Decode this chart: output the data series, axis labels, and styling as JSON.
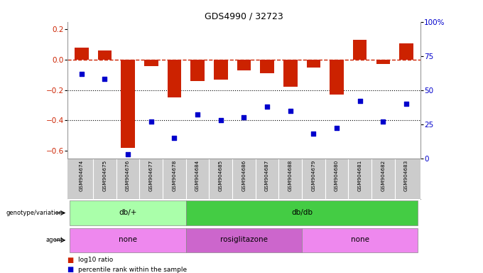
{
  "title": "GDS4990 / 32723",
  "samples": [
    "GSM904674",
    "GSM904675",
    "GSM904676",
    "GSM904677",
    "GSM904678",
    "GSM904684",
    "GSM904685",
    "GSM904686",
    "GSM904687",
    "GSM904688",
    "GSM904679",
    "GSM904680",
    "GSM904681",
    "GSM904682",
    "GSM904683"
  ],
  "log10_ratio": [
    0.08,
    0.06,
    -0.58,
    -0.04,
    -0.25,
    -0.14,
    -0.13,
    -0.07,
    -0.09,
    -0.18,
    -0.05,
    -0.23,
    0.13,
    -0.03,
    0.11
  ],
  "percentile_rank": [
    62,
    58,
    3,
    27,
    15,
    32,
    28,
    30,
    38,
    35,
    18,
    22,
    42,
    27,
    40
  ],
  "ylim_left": [
    -0.65,
    0.25
  ],
  "ylim_right": [
    0,
    100
  ],
  "yticks_left": [
    -0.6,
    -0.4,
    -0.2,
    0.0,
    0.2
  ],
  "yticks_right": [
    0,
    25,
    50,
    75,
    100
  ],
  "bar_color": "#cc2200",
  "dot_color": "#0000cc",
  "dashed_line_color": "#cc2200",
  "genotype_groups": [
    {
      "label": "db/+",
      "start": 0,
      "end": 4,
      "color": "#aaffaa"
    },
    {
      "label": "db/db",
      "start": 5,
      "end": 14,
      "color": "#44cc44"
    }
  ],
  "agent_groups": [
    {
      "label": "none",
      "start": 0,
      "end": 4,
      "color": "#ee88ee"
    },
    {
      "label": "rosiglitazone",
      "start": 5,
      "end": 9,
      "color": "#cc66cc"
    },
    {
      "label": "none",
      "start": 10,
      "end": 14,
      "color": "#ee88ee"
    }
  ],
  "legend_bar_label": "log10 ratio",
  "legend_dot_label": "percentile rank within the sample",
  "background_color": "#ffffff",
  "grid_dotted_color": "#000000"
}
